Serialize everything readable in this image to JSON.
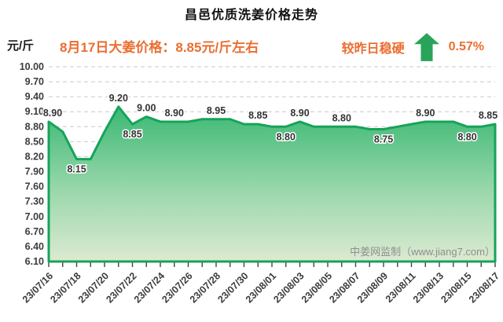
{
  "page": {
    "title": "昌邑优质洗姜价格走势"
  },
  "header": {
    "unit_label": "元/斤",
    "price_note": "8月17日大姜价格：8.85元/斤左右",
    "trend_label": "较昨日稳硬",
    "trend_icon": "arrow-up-icon",
    "trend_percent": "0.57%"
  },
  "watermark": "中姜网监制（www.jiang7.com）",
  "colors": {
    "accent_orange": "#eb6e31",
    "arrow_green": "#2aa45a"
  },
  "chart_data": {
    "type": "area",
    "title": "昌邑优质洗姜价格走势",
    "ylabel": "元/斤",
    "xlabel": "",
    "ylim": [
      6.1,
      10.0
    ],
    "ytick_step": 0.3,
    "yticks": [
      "10.00",
      "9.70",
      "9.40",
      "9.10",
      "8.80",
      "8.50",
      "8.20",
      "7.90",
      "7.60",
      "7.30",
      "7.00",
      "6.70",
      "6.40",
      "6.10"
    ],
    "grid": "dashed-horizontal",
    "legend": "none",
    "x": [
      "23/07/16",
      "23/07/17",
      "23/07/18",
      "23/07/19",
      "23/07/20",
      "23/07/21",
      "23/07/22",
      "23/07/23",
      "23/07/24",
      "23/07/25",
      "23/07/26",
      "23/07/27",
      "23/07/28",
      "23/07/29",
      "23/07/30",
      "23/07/31",
      "23/08/01",
      "23/08/02",
      "23/08/03",
      "23/08/04",
      "23/08/05",
      "23/08/06",
      "23/08/07",
      "23/08/08",
      "23/08/09",
      "23/08/10",
      "23/08/11",
      "23/08/12",
      "23/08/13",
      "23/08/14",
      "23/08/15",
      "23/08/16",
      "23/08/17"
    ],
    "xtick_labels": [
      "23/07/16",
      "23/07/18",
      "23/07/20",
      "23/07/22",
      "23/07/24",
      "23/07/26",
      "23/07/28",
      "23/07/30",
      "23/08/01",
      "23/08/03",
      "23/08/05",
      "23/08/07",
      "23/08/09",
      "23/08/11",
      "23/08/13",
      "23/08/15",
      "23/08/17"
    ],
    "values": [
      8.9,
      8.7,
      8.15,
      8.15,
      8.7,
      9.2,
      8.85,
      9.0,
      8.9,
      8.9,
      8.9,
      8.95,
      8.95,
      8.95,
      8.85,
      8.85,
      8.8,
      8.8,
      8.9,
      8.8,
      8.8,
      8.8,
      8.8,
      8.75,
      8.75,
      8.8,
      8.85,
      8.9,
      8.9,
      8.9,
      8.8,
      8.8,
      8.85
    ],
    "point_labels": [
      {
        "index": 0,
        "text": "8.90",
        "pos": "above"
      },
      {
        "index": 2,
        "text": "8.15",
        "pos": "below"
      },
      {
        "index": 5,
        "text": "9.20",
        "pos": "above"
      },
      {
        "index": 6,
        "text": "8.85",
        "pos": "below"
      },
      {
        "index": 7,
        "text": "9.00",
        "pos": "above"
      },
      {
        "index": 9,
        "text": "8.90",
        "pos": "above"
      },
      {
        "index": 12,
        "text": "8.95",
        "pos": "above"
      },
      {
        "index": 15,
        "text": "8.85",
        "pos": "above"
      },
      {
        "index": 17,
        "text": "8.80",
        "pos": "below"
      },
      {
        "index": 18,
        "text": "8.90",
        "pos": "above"
      },
      {
        "index": 21,
        "text": "8.80",
        "pos": "above"
      },
      {
        "index": 24,
        "text": "8.75",
        "pos": "below"
      },
      {
        "index": 27,
        "text": "8.90",
        "pos": "above"
      },
      {
        "index": 30,
        "text": "8.80",
        "pos": "below"
      },
      {
        "index": 32,
        "text": "8.85",
        "pos": "above"
      }
    ],
    "colors": {
      "line": "#16a35a",
      "fill_top": "#3ab873",
      "fill_mid": "#9bd8ac",
      "fill_bottom": "#dcead2",
      "grid": "#c9c9c9",
      "point_label": "#333333",
      "axis_text": "#3c3c3c",
      "watermark": "#8f8f8f"
    }
  }
}
